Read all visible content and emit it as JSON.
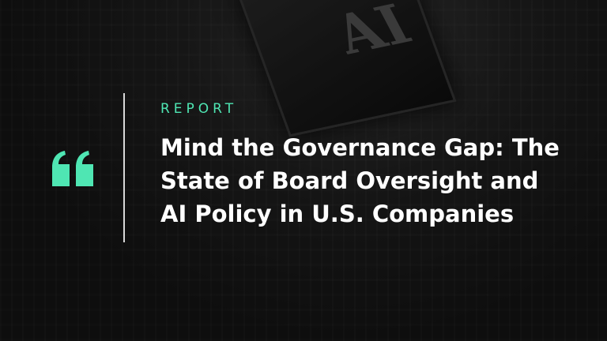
{
  "background": {
    "chip_label": "AI"
  },
  "quote_icon": "quote-open-icon",
  "accent_color": "#4fe6b3",
  "kicker": "REPORT",
  "title_lines": [
    "Mind the Governance Gap: The",
    "State of Board Oversight and",
    "AI Policy in U.S. Companies"
  ]
}
